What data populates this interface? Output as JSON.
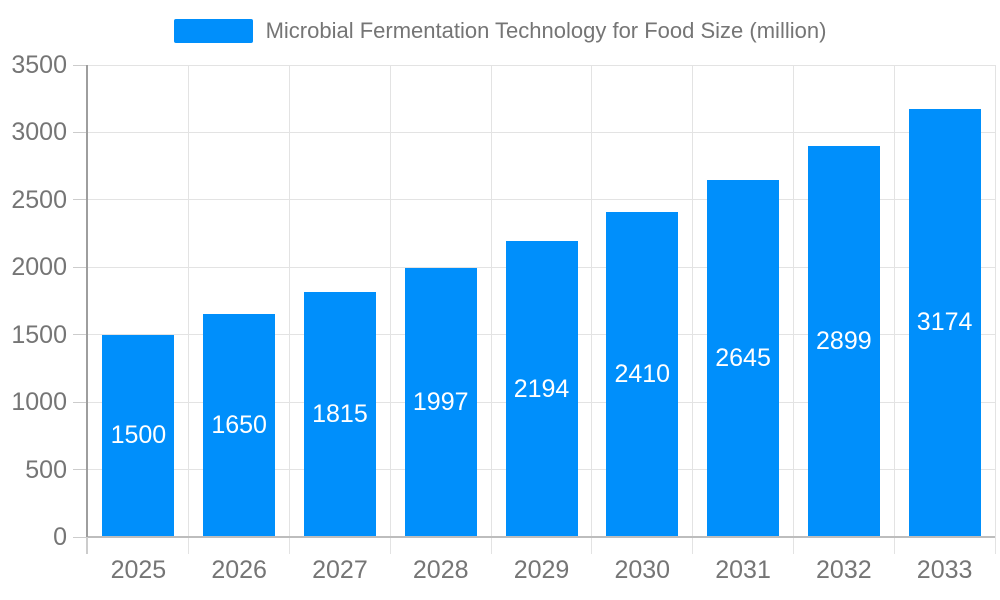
{
  "legend": {
    "label": "Microbial Fermentation Technology for Food Size (million)"
  },
  "colors": {
    "bar": "#008FFB",
    "grid": "#e3e3e3",
    "baseline": "#bdbdbd",
    "axis_line": "#9e9e9e",
    "tick": "#cccccc",
    "axis_label": "#757575",
    "bar_label": "#ffffff",
    "background": "#ffffff"
  },
  "chart_data": {
    "type": "bar",
    "title": "Microbial Fermentation Technology for Food Size (million)",
    "categories": [
      "2025",
      "2026",
      "2027",
      "2028",
      "2029",
      "2030",
      "2031",
      "2032",
      "2033"
    ],
    "values": [
      1500,
      1650,
      1815,
      1997,
      2194,
      2410,
      2645,
      2899,
      3174
    ],
    "xlabel": "",
    "ylabel": "",
    "ylim": [
      0,
      3500
    ],
    "ytick_step": 500,
    "grid": true,
    "legend_position": "top",
    "bar_label_position": "inside-center"
  }
}
